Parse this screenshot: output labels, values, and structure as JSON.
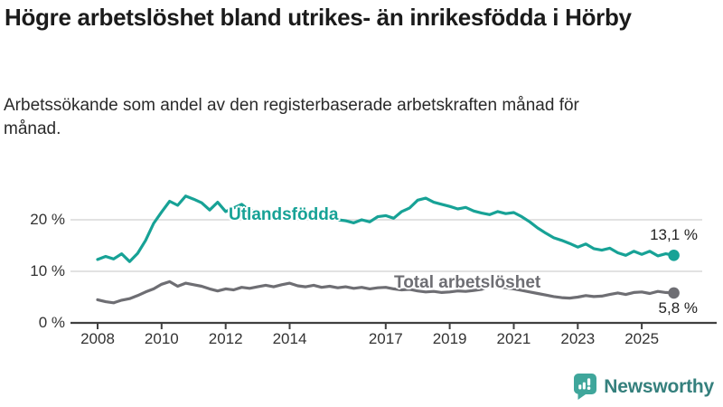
{
  "header": {
    "title": "Högre arbetslöshet bland utrikes- än inrikesfödda i Hörby",
    "subtitle": "Arbetssökande som andel av den registerbaserade arbetskraften månad för månad."
  },
  "chart_data": {
    "type": "line",
    "title": "Högre arbetslöshet bland utrikes- än inrikesfödda i Hörby",
    "subtitle": "Arbetssökande som andel av den registerbaserade arbetskraften månad för månad.",
    "grid": true,
    "grid_color": "#d9d9d9",
    "axis_color": "#404040",
    "tick_text_color": "#333333",
    "x_axis": {
      "ticks": [
        2008,
        2010,
        2012,
        2014,
        2017,
        2019,
        2021,
        2023,
        2025
      ],
      "min": 2007.2,
      "max": 2027.3
    },
    "y_axis": {
      "unit": "%",
      "min": 0,
      "max": 27,
      "ticks": [
        {
          "value": 0,
          "label": "0 %"
        },
        {
          "value": 10,
          "label": "10 %"
        },
        {
          "value": 20,
          "label": "20 %"
        }
      ]
    },
    "series": [
      {
        "name": "Total arbetslöshet",
        "color": "#6e6e73",
        "end_label": "5,8 %",
        "end_value": 5.8,
        "x_start": 2008,
        "x_step": 0.25,
        "values": [
          4.5,
          4.1,
          3.9,
          4.4,
          4.7,
          5.3,
          6.0,
          6.6,
          7.5,
          8.0,
          7.1,
          7.7,
          7.4,
          7.1,
          6.6,
          6.2,
          6.6,
          6.4,
          6.9,
          6.7,
          7.0,
          7.3,
          7.0,
          7.4,
          7.7,
          7.2,
          7.0,
          7.3,
          6.9,
          7.1,
          6.8,
          7.0,
          6.7,
          6.9,
          6.6,
          6.8,
          6.9,
          6.6,
          6.4,
          6.5,
          6.2,
          6.0,
          6.1,
          5.9,
          6.0,
          6.2,
          6.1,
          6.3,
          6.5,
          7.2,
          7.0,
          6.8,
          6.6,
          6.3,
          6.0,
          5.7,
          5.4,
          5.1,
          4.9,
          4.8,
          5.0,
          5.3,
          5.1,
          5.2,
          5.5,
          5.8,
          5.5,
          5.9,
          6.0,
          5.7,
          6.1,
          5.9,
          5.8
        ]
      },
      {
        "name": "Utlandsfödda",
        "color": "#17a296",
        "end_label": "13,1 %",
        "end_value": 13.1,
        "x_start": 2008,
        "x_step": 0.25,
        "values": [
          12.3,
          12.9,
          12.4,
          13.4,
          11.9,
          13.5,
          16.0,
          19.3,
          21.5,
          23.6,
          22.8,
          24.6,
          24.0,
          23.3,
          21.9,
          23.4,
          21.6,
          22.3,
          23.0,
          21.8,
          21.5,
          21.0,
          21.3,
          20.8,
          20.6,
          20.9,
          20.4,
          20.7,
          20.2,
          20.5,
          20.0,
          19.8,
          19.4,
          20.0,
          19.6,
          20.6,
          20.8,
          20.3,
          21.6,
          22.3,
          23.8,
          24.2,
          23.4,
          23.0,
          22.6,
          22.1,
          22.4,
          21.7,
          21.3,
          21.0,
          21.6,
          21.2,
          21.4,
          20.6,
          19.6,
          18.4,
          17.4,
          16.5,
          16.0,
          15.4,
          14.7,
          15.3,
          14.4,
          14.1,
          14.5,
          13.6,
          13.1,
          13.9,
          13.3,
          13.9,
          13.0,
          13.4,
          13.1
        ]
      }
    ],
    "legend_position": "inline-labels"
  },
  "branding": {
    "logo_text": "Newsworthy",
    "icon": "newsworthy-chart-bubble-icon",
    "icon_color": "#3fa69b",
    "text_color": "#35807d"
  }
}
